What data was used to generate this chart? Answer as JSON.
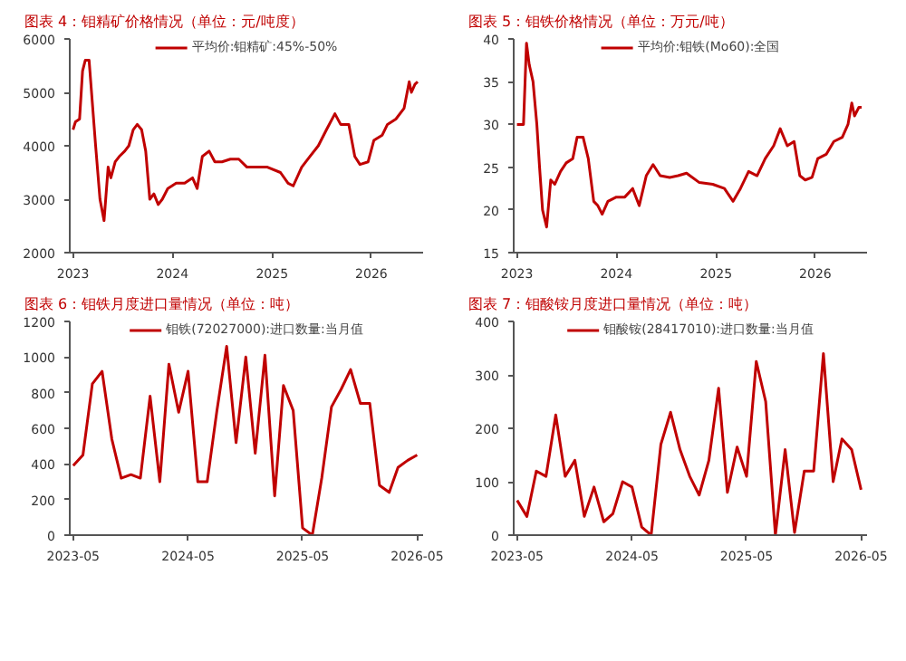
{
  "chart_data": [
    {
      "type": "line",
      "title": "图表 4：钼精矿价格情况（单位：元/吨度）",
      "legend": "top",
      "grid": false,
      "xlim": [
        "2022-12-20",
        "2026-07-10"
      ],
      "xticks": [
        "2023",
        "2024",
        "2025",
        "2026"
      ],
      "ylim": [
        2000,
        6000
      ],
      "yticks": [
        2000,
        3000,
        4000,
        5000,
        6000
      ],
      "x": [
        "2023-01-01",
        "2023-01-10",
        "2023-01-25",
        "2023-02-05",
        "2023-02-15",
        "2023-03-01",
        "2023-03-10",
        "2023-03-25",
        "2023-04-10",
        "2023-04-25",
        "2023-05-10",
        "2023-05-20",
        "2023-06-05",
        "2023-06-20",
        "2023-07-10",
        "2023-07-25",
        "2023-08-10",
        "2023-08-25",
        "2023-09-10",
        "2023-09-25",
        "2023-10-10",
        "2023-10-25",
        "2023-11-10",
        "2023-11-25",
        "2023-12-15",
        "2024-01-15",
        "2024-02-15",
        "2024-03-15",
        "2024-04-01",
        "2024-04-20",
        "2024-05-15",
        "2024-06-05",
        "2024-07-01",
        "2024-08-01",
        "2024-09-01",
        "2024-10-01",
        "2024-11-01",
        "2024-12-15",
        "2025-02-01",
        "2025-03-01",
        "2025-03-20",
        "2025-04-20",
        "2025-05-20",
        "2025-06-20",
        "2025-07-20",
        "2025-08-20",
        "2025-09-10",
        "2025-10-10",
        "2025-11-01",
        "2025-11-20",
        "2025-12-20",
        "2026-01-10",
        "2026-02-10",
        "2026-03-01",
        "2026-04-01",
        "2026-05-01",
        "2026-05-20",
        "2026-05-28",
        "2026-06-10",
        "2026-06-20"
      ],
      "series": [
        {
          "name": "平均价:钼精矿:45%-50%",
          "color": "#c00000",
          "values": [
            4300,
            4450,
            4500,
            5400,
            5600,
            5600,
            5000,
            4000,
            3000,
            2600,
            3600,
            3400,
            3700,
            3800,
            3900,
            4000,
            4300,
            4400,
            4300,
            3900,
            3000,
            3100,
            2900,
            3000,
            3200,
            3300,
            3300,
            3400,
            3200,
            3800,
            3900,
            3700,
            3700,
            3750,
            3750,
            3600,
            3600,
            3600,
            3500,
            3300,
            3250,
            3600,
            3800,
            4000,
            4300,
            4600,
            4400,
            4400,
            3800,
            3650,
            3700,
            4100,
            4200,
            4400,
            4500,
            4700,
            5200,
            5000,
            5150,
            5200
          ]
        }
      ]
    },
    {
      "type": "line",
      "title": "图表 5：钼铁价格情况（单位：万元/吨）",
      "legend": "top",
      "grid": false,
      "xlim": [
        "2022-12-20",
        "2026-07-10"
      ],
      "xticks": [
        "2023",
        "2024",
        "2025",
        "2026"
      ],
      "ylim": [
        15,
        40
      ],
      "yticks": [
        15,
        20,
        25,
        30,
        35,
        40
      ],
      "x": [
        "2023-01-01",
        "2023-01-25",
        "2023-02-05",
        "2023-02-15",
        "2023-03-01",
        "2023-03-15",
        "2023-03-25",
        "2023-04-05",
        "2023-04-20",
        "2023-05-05",
        "2023-05-20",
        "2023-06-10",
        "2023-07-01",
        "2023-07-25",
        "2023-08-10",
        "2023-09-01",
        "2023-09-20",
        "2023-10-10",
        "2023-10-25",
        "2023-11-10",
        "2023-12-01",
        "2024-01-01",
        "2024-02-01",
        "2024-03-01",
        "2024-03-25",
        "2024-04-20",
        "2024-05-15",
        "2024-06-10",
        "2024-07-15",
        "2024-08-15",
        "2024-09-15",
        "2024-11-01",
        "2024-12-20",
        "2025-02-01",
        "2025-03-05",
        "2025-04-01",
        "2025-05-01",
        "2025-06-01",
        "2025-07-01",
        "2025-08-01",
        "2025-08-25",
        "2025-09-20",
        "2025-10-15",
        "2025-11-05",
        "2025-11-25",
        "2025-12-20",
        "2026-01-10",
        "2026-02-10",
        "2026-03-10",
        "2026-04-10",
        "2026-05-01",
        "2026-05-15",
        "2026-05-25",
        "2026-06-10",
        "2026-06-20"
      ],
      "series": [
        {
          "name": "平均价:钼铁(Mo60):全国",
          "color": "#c00000",
          "values": [
            30,
            30,
            39.5,
            37,
            35,
            30,
            25,
            20,
            18,
            23.5,
            23,
            24.5,
            25.5,
            26,
            28.5,
            28.5,
            26,
            21,
            20.5,
            19.5,
            21,
            21.5,
            21.5,
            22.5,
            20.5,
            24,
            25.3,
            24,
            23.8,
            24,
            24.3,
            23.2,
            23,
            22.5,
            21,
            22.5,
            24.5,
            24,
            26,
            27.5,
            29.5,
            27.5,
            28,
            24,
            23.5,
            23.8,
            26,
            26.5,
            28,
            28.5,
            30,
            32.5,
            31,
            32,
            32
          ]
        }
      ]
    },
    {
      "type": "line",
      "title": "图表 6：钼铁月度进口量情况（单位：吨）",
      "legend": "top",
      "grid": false,
      "xlim": [
        "2023-04-20",
        "2026-05-20"
      ],
      "xticks": [
        "2023-05",
        "2024-05",
        "2025-05",
        "2026-05"
      ],
      "ylim": [
        0,
        1200
      ],
      "yticks": [
        0,
        200,
        400,
        600,
        800,
        1000,
        1200
      ],
      "x": [
        "2023-05",
        "2023-06",
        "2023-07",
        "2023-08",
        "2023-09",
        "2023-10",
        "2023-11",
        "2023-12",
        "2024-01",
        "2024-02",
        "2024-03",
        "2024-04",
        "2024-05",
        "2024-06",
        "2024-07",
        "2024-08",
        "2024-09",
        "2024-10",
        "2024-11",
        "2024-12",
        "2025-01",
        "2025-02",
        "2025-03",
        "2025-04",
        "2025-05",
        "2025-06",
        "2025-07",
        "2025-08",
        "2025-09",
        "2025-10",
        "2025-11",
        "2025-12",
        "2026-01",
        "2026-02",
        "2026-03",
        "2026-04",
        "2026-05"
      ],
      "series": [
        {
          "name": "钼铁(72027000):进口数量:当月值",
          "color": "#c00000",
          "values": [
            390,
            450,
            850,
            920,
            540,
            320,
            340,
            320,
            780,
            300,
            960,
            690,
            920,
            300,
            300,
            700,
            1060,
            520,
            1000,
            460,
            1010,
            220,
            840,
            700,
            40,
            0,
            320,
            720,
            820,
            930,
            740,
            740,
            280,
            240,
            380,
            420,
            450
          ]
        }
      ]
    },
    {
      "type": "line",
      "title": "图表 7：钼酸铵月度进口量情况（单位：吨）",
      "legend": "top",
      "grid": false,
      "xlim": [
        "2023-04-20",
        "2026-05-20"
      ],
      "xticks": [
        "2023-05",
        "2024-05",
        "2025-05",
        "2026-05"
      ],
      "ylim": [
        0,
        400
      ],
      "yticks": [
        0,
        100,
        200,
        300,
        400
      ],
      "x": [
        "2023-05",
        "2023-06",
        "2023-07",
        "2023-08",
        "2023-09",
        "2023-10",
        "2023-11",
        "2023-12",
        "2024-01",
        "2024-02",
        "2024-03",
        "2024-04",
        "2024-05",
        "2024-06",
        "2024-07",
        "2024-08",
        "2024-09",
        "2024-10",
        "2024-11",
        "2024-12",
        "2025-01",
        "2025-02",
        "2025-03",
        "2025-04",
        "2025-05",
        "2025-06",
        "2025-07",
        "2025-08",
        "2025-09",
        "2025-10",
        "2025-11",
        "2025-12",
        "2026-01",
        "2026-02",
        "2026-03",
        "2026-04",
        "2026-05"
      ],
      "series": [
        {
          "name": "钼酸铵(28417010):进口数量:当月值",
          "color": "#c00000",
          "values": [
            65,
            35,
            120,
            110,
            225,
            110,
            140,
            35,
            90,
            25,
            40,
            100,
            90,
            15,
            0,
            170,
            230,
            160,
            110,
            75,
            140,
            275,
            80,
            165,
            110,
            325,
            250,
            0,
            160,
            5,
            120,
            120,
            340,
            100,
            180,
            160,
            85
          ]
        }
      ]
    }
  ]
}
